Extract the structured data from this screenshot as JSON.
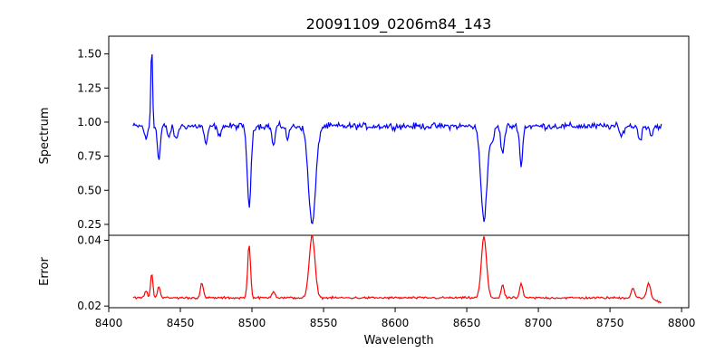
{
  "chart_data": {
    "type": "line",
    "title": "20091109_0206m84_143",
    "xlabel": "Wavelength",
    "xlim": [
      8400,
      8805
    ],
    "x_ticks": [
      "8400",
      "8450",
      "8500",
      "8550",
      "8600",
      "8650",
      "8700",
      "8750",
      "8800"
    ],
    "panels": [
      {
        "name": "spectrum",
        "ylabel": "Spectrum",
        "ylim": [
          0.17,
          1.63
        ],
        "y_ticks": [
          "0.25",
          "0.50",
          "0.75",
          "1.00",
          "1.25",
          "1.50"
        ],
        "color": "#0000ff",
        "lines": [
          {
            "center": 8430,
            "depth": -0.6,
            "width": 0.6
          },
          {
            "center": 8426,
            "depth": 0.1,
            "width": 1.0
          },
          {
            "center": 8435,
            "depth": 0.25,
            "width": 1.0
          },
          {
            "center": 8442,
            "depth": 0.08,
            "width": 1.0
          },
          {
            "center": 8447,
            "depth": 0.1,
            "width": 1.2
          },
          {
            "center": 8468,
            "depth": 0.13,
            "width": 1.2
          },
          {
            "center": 8477,
            "depth": 0.08,
            "width": 1.0
          },
          {
            "center": 8498,
            "depth": 0.6,
            "width": 1.3
          },
          {
            "center": 8515,
            "depth": 0.15,
            "width": 1.0
          },
          {
            "center": 8525,
            "depth": 0.1,
            "width": 1.0
          },
          {
            "center": 8542,
            "depth": 0.72,
            "width": 2.5
          },
          {
            "center": 8662,
            "depth": 0.68,
            "width": 2.2
          },
          {
            "center": 8668,
            "depth": 0.12,
            "width": 1.0
          },
          {
            "center": 8675,
            "depth": 0.2,
            "width": 1.2
          },
          {
            "center": 8688,
            "depth": 0.3,
            "width": 1.0
          },
          {
            "center": 8758,
            "depth": 0.08,
            "width": 1.2
          },
          {
            "center": 8771,
            "depth": 0.1,
            "width": 1.2
          },
          {
            "center": 8779,
            "depth": 0.07,
            "width": 1.0
          }
        ],
        "x_range": [
          8417,
          8786
        ],
        "continuum": 0.97,
        "noise": 0.035
      },
      {
        "name": "error",
        "ylabel": "Error",
        "ylim": [
          0.0195,
          0.0415
        ],
        "y_ticks": [
          "0.02",
          "0.04"
        ],
        "color": "#ff0000",
        "lines": [
          {
            "center": 8430,
            "height": 0.0075,
            "width": 0.8
          },
          {
            "center": 8426,
            "height": 0.002,
            "width": 1.0
          },
          {
            "center": 8435,
            "height": 0.0035,
            "width": 1.0
          },
          {
            "center": 8465,
            "height": 0.0045,
            "width": 1.0
          },
          {
            "center": 8498,
            "height": 0.0162,
            "width": 1.0
          },
          {
            "center": 8515,
            "height": 0.002,
            "width": 1.2
          },
          {
            "center": 8542,
            "height": 0.0188,
            "width": 2.0
          },
          {
            "center": 8662,
            "height": 0.0185,
            "width": 1.8
          },
          {
            "center": 8675,
            "height": 0.004,
            "width": 1.0
          },
          {
            "center": 8688,
            "height": 0.0045,
            "width": 1.0
          },
          {
            "center": 8766,
            "height": 0.003,
            "width": 1.2
          },
          {
            "center": 8777,
            "height": 0.0045,
            "width": 1.2
          }
        ],
        "x_range": [
          8417,
          8786
        ],
        "baseline": 0.0225,
        "noise": 0.0005,
        "end_value": 0.021
      }
    ]
  }
}
